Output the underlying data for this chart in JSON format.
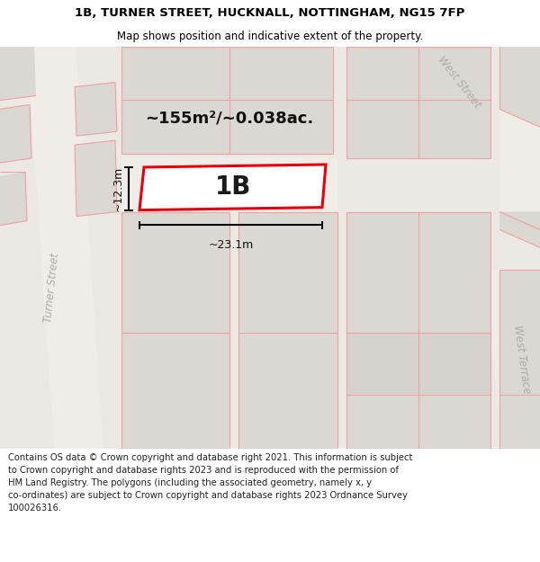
{
  "title_line1": "1B, TURNER STREET, HUCKNALL, NOTTINGHAM, NG15 7FP",
  "title_line2": "Map shows position and indicative extent of the property.",
  "footer_lines": [
    "Contains OS data © Crown copyright and database right 2021. This information is subject to Crown copyright and database rights 2023 and is reproduced with the permission of",
    "HM Land Registry. The polygons (including the associated geometry, namely x, y",
    "co-ordinates) are subject to Crown copyright and database rights 2023 Ordnance Survey",
    "100026316."
  ],
  "area_label": "~155m²/~0.038ac.",
  "label_1b": "1B",
  "dim_width": "~23.1m",
  "dim_height": "~12.3m",
  "street_turner": "Turner Street",
  "street_west": "West Street",
  "street_west_terrace": "West Terrace",
  "map_bg": "#ece9e5",
  "block_fill": "#dbd8d4",
  "block_fill2": "#d5d2ce",
  "road_fill": "#f0ede9",
  "plot_outline_color": "#e8000d",
  "plot_fill_color": "#ffffff",
  "pink_line_color": "#f0a0a0",
  "title_fontsize": 9.5,
  "subtitle_fontsize": 8.5,
  "footer_fontsize": 7.2,
  "area_fontsize": 13,
  "label_fontsize": 20,
  "dim_fontsize": 9,
  "street_fontsize": 8.5
}
